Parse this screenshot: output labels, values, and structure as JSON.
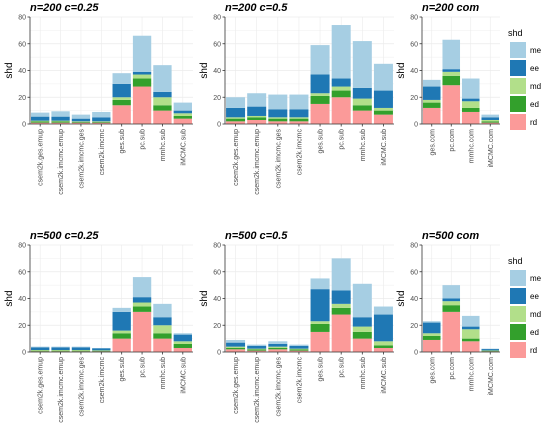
{
  "colors": {
    "me": "#a6cee3",
    "ee": "#1f78b4",
    "md": "#b2df8a",
    "ed": "#33a02c",
    "rd": "#fb9a99",
    "grid": "#ebebeb",
    "axis": "#333333"
  },
  "legend": {
    "title": "shd",
    "position": "right",
    "entries": [
      "me",
      "ee",
      "md",
      "ed",
      "rd"
    ]
  },
  "chart_data": [
    {
      "type": "bar",
      "stacked": true,
      "title": "n=200 c=0.25",
      "ylabel": "shd",
      "xlabel": "",
      "ylim": [
        0,
        80
      ],
      "yticks": [
        0,
        20,
        40,
        60,
        80
      ],
      "categories": [
        "csem2k.ges.emup",
        "csem2k.imcmc.emup",
        "csem2k.imcmc.ges",
        "csem2k.imcmc",
        "ges.sub",
        "pc.sub",
        "mmhc.sub",
        "iMCMC.sub"
      ],
      "series": [
        {
          "name": "rd",
          "values": [
            1,
            1,
            1,
            1,
            14,
            28,
            10,
            4
          ]
        },
        {
          "name": "ed",
          "values": [
            1,
            1,
            0.5,
            0.5,
            4,
            6,
            4,
            2
          ]
        },
        {
          "name": "md",
          "values": [
            0.5,
            0.5,
            0.5,
            0.5,
            2,
            3,
            6,
            2
          ]
        },
        {
          "name": "ee",
          "values": [
            3,
            3,
            2,
            3,
            10,
            2,
            4,
            2
          ]
        },
        {
          "name": "me",
          "values": [
            3,
            4,
            3,
            4,
            8,
            27,
            20,
            6
          ]
        }
      ]
    },
    {
      "type": "bar",
      "stacked": true,
      "title": "n=200 c=0.5",
      "ylabel": "shd",
      "xlabel": "",
      "ylim": [
        0,
        80
      ],
      "yticks": [
        0,
        20,
        40,
        60,
        80
      ],
      "categories": [
        "csem2k.ges.emup",
        "csem2k.imcmc.emup",
        "csem2k.imcmc.ges",
        "csem2k.imcmc",
        "ges.sub",
        "pc.sub",
        "mmhc.sub",
        "iMCMC.sub"
      ],
      "series": [
        {
          "name": "rd",
          "values": [
            2,
            3,
            2,
            2,
            15,
            20,
            10,
            7
          ]
        },
        {
          "name": "ed",
          "values": [
            2,
            2,
            2,
            2,
            6,
            5,
            4,
            3
          ]
        },
        {
          "name": "md",
          "values": [
            1,
            1,
            1,
            1,
            2,
            3,
            5,
            2
          ]
        },
        {
          "name": "ee",
          "values": [
            7,
            7,
            6,
            6,
            14,
            6,
            8,
            13
          ]
        },
        {
          "name": "me",
          "values": [
            8,
            10,
            11,
            11,
            22,
            40,
            35,
            20
          ]
        }
      ]
    },
    {
      "type": "bar",
      "stacked": true,
      "title": "n=200 com",
      "ylabel": "shd",
      "xlabel": "",
      "ylim": [
        0,
        80
      ],
      "yticks": [
        0,
        20,
        40,
        60,
        80
      ],
      "categories": [
        "ges.com",
        "pc.com",
        "mmhc.com",
        "iMCMC.com"
      ],
      "series": [
        {
          "name": "rd",
          "values": [
            12,
            29,
            9,
            1
          ]
        },
        {
          "name": "ed",
          "values": [
            4,
            7,
            3,
            1
          ]
        },
        {
          "name": "md",
          "values": [
            2,
            3,
            5,
            1
          ]
        },
        {
          "name": "ee",
          "values": [
            10,
            2,
            2,
            2
          ]
        },
        {
          "name": "me",
          "values": [
            5,
            22,
            15,
            2
          ]
        }
      ]
    },
    {
      "type": "bar",
      "stacked": true,
      "title": "n=500 c=0.25",
      "ylabel": "shd",
      "xlabel": "",
      "ylim": [
        0,
        80
      ],
      "yticks": [
        0,
        20,
        40,
        60,
        80
      ],
      "categories": [
        "csem2k.ges.emup",
        "csem2k.imcmc.emup",
        "csem2k.imcmc.ges",
        "csem2k.imcmc",
        "ges.sub",
        "pc.sub",
        "mmhc.sub",
        "iMCMC.sub"
      ],
      "series": [
        {
          "name": "rd",
          "values": [
            0.5,
            0.5,
            0.5,
            0.5,
            10,
            30,
            10,
            3
          ]
        },
        {
          "name": "ed",
          "values": [
            0.5,
            0.5,
            0.5,
            0.5,
            4,
            4,
            4,
            3
          ]
        },
        {
          "name": "md",
          "values": [
            0.5,
            0.5,
            0.5,
            0.3,
            2,
            3,
            6,
            2
          ]
        },
        {
          "name": "ee",
          "values": [
            2,
            2,
            2,
            1.5,
            14,
            4,
            6,
            5
          ]
        },
        {
          "name": "me",
          "values": [
            0.5,
            0.5,
            0.5,
            0.2,
            3,
            15,
            10,
            1
          ]
        }
      ]
    },
    {
      "type": "bar",
      "stacked": true,
      "title": "n=500 c=0.5",
      "ylabel": "shd",
      "xlabel": "",
      "ylim": [
        0,
        80
      ],
      "yticks": [
        0,
        20,
        40,
        60,
        80
      ],
      "categories": [
        "csem2k.ges.emup",
        "csem2k.imcmc.emup",
        "csem2k.imcmc.ges",
        "csem2k.imcmc",
        "ges.sub",
        "pc.sub",
        "mmhc.sub",
        "iMCMC.sub"
      ],
      "series": [
        {
          "name": "rd",
          "values": [
            2,
            1,
            2,
            1,
            15,
            28,
            10,
            3
          ]
        },
        {
          "name": "ed",
          "values": [
            1,
            1,
            1,
            1,
            6,
            5,
            5,
            2
          ]
        },
        {
          "name": "md",
          "values": [
            1,
            0.5,
            1,
            0.5,
            2,
            3,
            4,
            3
          ]
        },
        {
          "name": "ee",
          "values": [
            3,
            2,
            2,
            2,
            24,
            10,
            7,
            20
          ]
        },
        {
          "name": "me",
          "values": [
            2,
            1,
            2,
            1,
            8,
            24,
            25,
            6
          ]
        }
      ]
    },
    {
      "type": "bar",
      "stacked": true,
      "title": "n=500 com",
      "ylabel": "shd",
      "xlabel": "",
      "ylim": [
        0,
        80
      ],
      "yticks": [
        0,
        20,
        40,
        60,
        80
      ],
      "categories": [
        "ges.com",
        "pc.com",
        "mmhc.com",
        "iMCMC.com"
      ],
      "series": [
        {
          "name": "rd",
          "values": [
            9,
            30,
            8,
            0.5
          ]
        },
        {
          "name": "ed",
          "values": [
            3,
            5,
            2,
            0.5
          ]
        },
        {
          "name": "md",
          "values": [
            2,
            3,
            7,
            0.2
          ]
        },
        {
          "name": "ee",
          "values": [
            8,
            2,
            2,
            1
          ]
        },
        {
          "name": "me",
          "values": [
            1,
            10,
            8,
            0.3
          ]
        }
      ]
    }
  ]
}
